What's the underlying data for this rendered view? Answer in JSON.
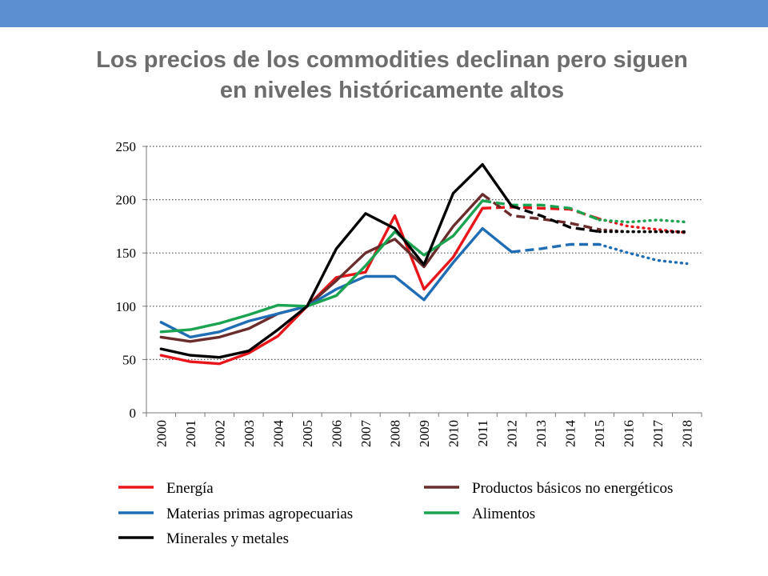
{
  "header": {
    "title_line1": "Los precios de los commodities declinan pero siguen",
    "title_line2": "en niveles históricamente altos"
  },
  "colors": {
    "bar": "#5b8fd2",
    "title": "#6d6d6d"
  },
  "chart_data": {
    "type": "line",
    "title": "Los precios de los commodities declinan pero siguen en niveles históricamente altos",
    "xlabel": "",
    "ylabel": "",
    "ylim": [
      0,
      250
    ],
    "yticks": [
      "0",
      "50",
      "100",
      "150",
      "200",
      "250"
    ],
    "categories": [
      "2000",
      "2001",
      "2002",
      "2003",
      "2004",
      "2005",
      "2006",
      "2007",
      "2008",
      "2009",
      "2010",
      "2011",
      "2012",
      "2013",
      "2014",
      "2015",
      "2016",
      "2017",
      "2018"
    ],
    "grid": "horizontal dotted",
    "legend_position": "bottom",
    "series": [
      {
        "name": "Energía",
        "color": "#e8161b",
        "values": [
          54,
          48,
          46,
          56,
          72,
          100,
          127,
          132,
          185,
          116,
          146,
          192,
          193,
          192,
          191,
          182,
          175,
          172,
          169
        ],
        "dashed_from": "2011",
        "dotted_from": "2015"
      },
      {
        "name": "Productos básicos no energéticos",
        "color": "#6b2c2c",
        "values": [
          71,
          67,
          71,
          79,
          93,
          100,
          124,
          150,
          163,
          137,
          175,
          205,
          185,
          182,
          178,
          172,
          170,
          170,
          169
        ],
        "dashed_from": "2011",
        "dotted_from": "2015"
      },
      {
        "name": "Materias primas agropecuarias",
        "color": "#1f6db5",
        "values": [
          85,
          71,
          76,
          86,
          93,
          100,
          116,
          128,
          128,
          106,
          141,
          173,
          151,
          154,
          158,
          158,
          150,
          143,
          140
        ],
        "dashed_from": "2012",
        "dotted_from": "2015"
      },
      {
        "name": "Alimentos",
        "color": "#1aa350",
        "values": [
          76,
          78,
          84,
          92,
          101,
          100,
          110,
          138,
          170,
          148,
          166,
          199,
          195,
          195,
          192,
          181,
          179,
          181,
          179
        ],
        "dashed_from": "2011",
        "dotted_from": "2015"
      },
      {
        "name": "Minerales y metales",
        "color": "#000000",
        "values": [
          60,
          54,
          52,
          58,
          78,
          100,
          154,
          187,
          173,
          139,
          206,
          233,
          194,
          185,
          174,
          170,
          170,
          170,
          170
        ],
        "dashed_from": "2012",
        "dotted_from": "2015"
      }
    ]
  }
}
